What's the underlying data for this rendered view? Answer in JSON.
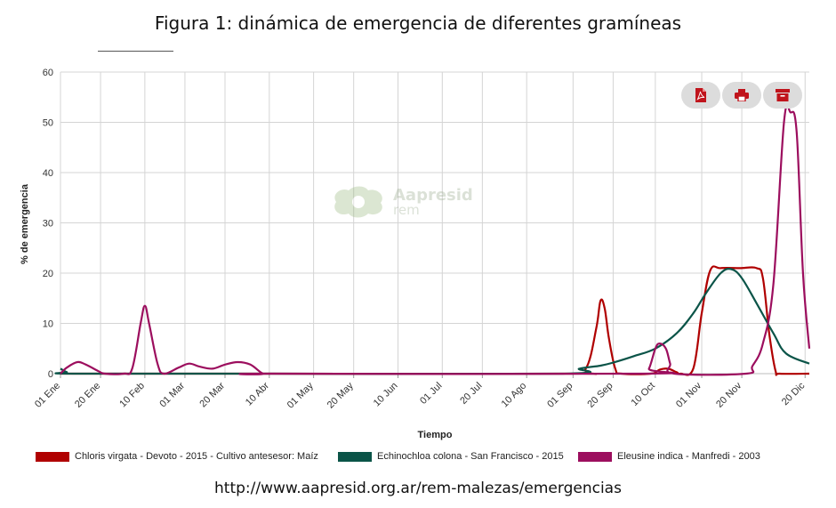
{
  "title": "Figura 1: dinámica de emergencia de diferentes gramíneas",
  "source_url": "http://www.aapresid.org.ar/rem-malezas/emergencias",
  "watermark": {
    "main": "Aapresid",
    "sub": "rem"
  },
  "toolbar": [
    {
      "name": "pdf-export-button",
      "icon": "pdf-icon",
      "color": "#c0141c"
    },
    {
      "name": "print-button",
      "icon": "printer-icon",
      "color": "#c0141c"
    },
    {
      "name": "archive-button",
      "icon": "archive-icon",
      "color": "#c0141c"
    }
  ],
  "chart_data": {
    "type": "line",
    "xlabel": "Tiempo",
    "ylabel": "% de emergencia",
    "ylim": [
      0,
      60
    ],
    "yticks": [
      0,
      10,
      20,
      30,
      40,
      50,
      60
    ],
    "xlim": [
      0,
      355
    ],
    "xticks": [
      {
        "label": "01 Ene",
        "x": 0
      },
      {
        "label": "20 Ene",
        "x": 19
      },
      {
        "label": "10 Feb",
        "x": 40
      },
      {
        "label": "01 Mar",
        "x": 59
      },
      {
        "label": "20 Mar",
        "x": 78
      },
      {
        "label": "10 Abr",
        "x": 99
      },
      {
        "label": "01 May",
        "x": 120
      },
      {
        "label": "20 May",
        "x": 139
      },
      {
        "label": "10 Jun",
        "x": 160
      },
      {
        "label": "01 Jul",
        "x": 181
      },
      {
        "label": "20 Jul",
        "x": 200
      },
      {
        "label": "10 Ago",
        "x": 221
      },
      {
        "label": "01 Sep",
        "x": 243
      },
      {
        "label": "20 Sep",
        "x": 262
      },
      {
        "label": "10 Oct",
        "x": 282
      },
      {
        "label": "01 Nov",
        "x": 304
      },
      {
        "label": "20 Nov",
        "x": 323
      },
      {
        "label": "20 Dic",
        "x": 353
      }
    ],
    "grid": true,
    "legend_position": "bottom",
    "series": [
      {
        "name": "Chloris virgata - Devoto - 2015 - Cultivo antesesor: Maíz",
        "color": "#b00000",
        "points": [
          [
            0,
            0
          ],
          [
            100,
            0
          ],
          [
            240,
            0
          ],
          [
            249,
            1
          ],
          [
            254,
            9
          ],
          [
            256,
            14.5
          ],
          [
            258,
            13
          ],
          [
            260,
            7
          ],
          [
            263,
            1
          ],
          [
            266,
            0
          ],
          [
            280,
            0
          ],
          [
            284,
            0.8
          ],
          [
            288,
            1
          ],
          [
            292,
            0.3
          ],
          [
            294,
            0
          ],
          [
            300,
            1
          ],
          [
            304,
            12
          ],
          [
            308,
            20.5
          ],
          [
            313,
            21
          ],
          [
            322,
            21
          ],
          [
            330,
            21
          ],
          [
            333,
            19
          ],
          [
            336,
            8
          ],
          [
            339,
            0.5
          ],
          [
            341,
            0
          ],
          [
            355,
            0
          ]
        ]
      },
      {
        "name": "Echinochloa colona - San Francisco - 2015",
        "color": "#0b5448",
        "points": [
          [
            0,
            1
          ],
          [
            3,
            0.3
          ],
          [
            6,
            0
          ],
          [
            100,
            0
          ],
          [
            238,
            0
          ],
          [
            246,
            1
          ],
          [
            256,
            1.6
          ],
          [
            262,
            2.2
          ],
          [
            272,
            3.5
          ],
          [
            282,
            5
          ],
          [
            292,
            8
          ],
          [
            300,
            12
          ],
          [
            306,
            16
          ],
          [
            313,
            20
          ],
          [
            318,
            20.8
          ],
          [
            323,
            19
          ],
          [
            330,
            14
          ],
          [
            338,
            8
          ],
          [
            344,
            4
          ],
          [
            355,
            2
          ]
        ]
      },
      {
        "name": "Eleusine indica - Manfredi - 2003",
        "color": "#9c0e5e",
        "points": [
          [
            0,
            0
          ],
          [
            3,
            1.2
          ],
          [
            8,
            2.3
          ],
          [
            12,
            1.8
          ],
          [
            18,
            0.5
          ],
          [
            21,
            0
          ],
          [
            30,
            0
          ],
          [
            34,
            1
          ],
          [
            38,
            10
          ],
          [
            40,
            13.5
          ],
          [
            42,
            10
          ],
          [
            46,
            2
          ],
          [
            49,
            0
          ],
          [
            56,
            1.2
          ],
          [
            61,
            2
          ],
          [
            66,
            1.4
          ],
          [
            72,
            1
          ],
          [
            78,
            1.8
          ],
          [
            84,
            2.3
          ],
          [
            90,
            1.8
          ],
          [
            96,
            0
          ],
          [
            100,
            0
          ],
          [
            276,
            0
          ],
          [
            279,
            1
          ],
          [
            282,
            5
          ],
          [
            284,
            6
          ],
          [
            287,
            5
          ],
          [
            289,
            2
          ],
          [
            291,
            0
          ],
          [
            325,
            0
          ],
          [
            328,
            1.5
          ],
          [
            333,
            6
          ],
          [
            338,
            18
          ],
          [
            343,
            50
          ],
          [
            346,
            52
          ],
          [
            349,
            48
          ],
          [
            352,
            20
          ],
          [
            355,
            5
          ]
        ]
      }
    ]
  }
}
